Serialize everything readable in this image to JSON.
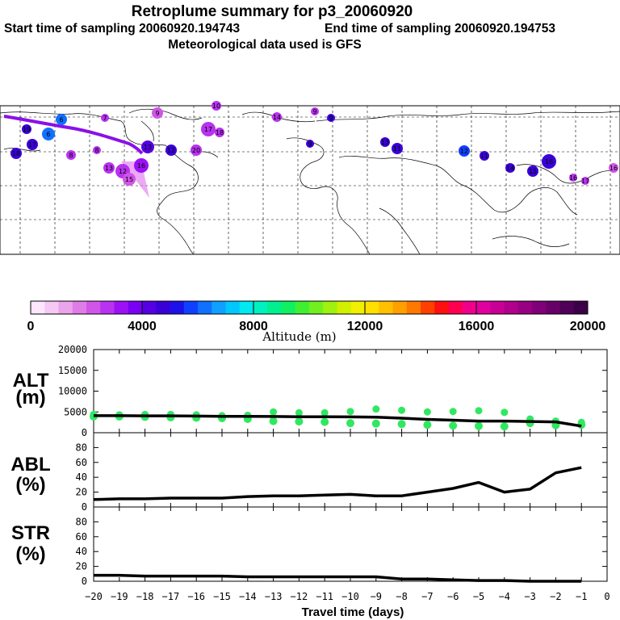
{
  "header": {
    "title": "Retroplume summary for p3_20060920",
    "start_label": "Start time of sampling 20060920.194743",
    "end_label": "End time of sampling 20060920.194753",
    "met_label": "Meteorological data used is GFS"
  },
  "colorbar": {
    "ticks": [
      "0",
      "4000",
      "8000",
      "12000",
      "16000",
      "20000"
    ],
    "label": "Altitude (m)",
    "stops": [
      "#ffe6ff",
      "#f5c8f5",
      "#eaa5ea",
      "#e07ce8",
      "#d155e8",
      "#b832f0",
      "#9c10f5",
      "#7a00f5",
      "#5500e0",
      "#3a00d8",
      "#1e10e8",
      "#1040ff",
      "#1070ff",
      "#10a0ff",
      "#00c8ff",
      "#00e8f0",
      "#00f0c0",
      "#00f090",
      "#10f060",
      "#40f030",
      "#70f020",
      "#a0f010",
      "#d0f000",
      "#f0f000",
      "#ffe000",
      "#ffc000",
      "#ffa000",
      "#ff7800",
      "#ff4000",
      "#ff1010",
      "#ff0050",
      "#f0008a",
      "#e000a0",
      "#c80096",
      "#b0008c",
      "#980082",
      "#800078",
      "#68006a",
      "#500058",
      "#3c0048"
    ]
  },
  "map_labels": [
    "6",
    "6",
    "19",
    "17",
    "18",
    "8",
    "7",
    "9",
    "8",
    "10",
    "17",
    "18",
    "14",
    "13",
    "12",
    "15",
    "16",
    "13",
    "9",
    "9",
    "9",
    "20",
    "12",
    "11",
    "13",
    "12",
    "11",
    "14",
    "15",
    "16",
    "16",
    "17",
    "16"
  ],
  "chart_data": [
    {
      "name": "ALT",
      "type": "line",
      "title": "ALT",
      "ylabel": "(m)",
      "x": [
        -20,
        -19,
        -18,
        -17,
        -16,
        -15,
        -14,
        -13,
        -12,
        -11,
        -10,
        -9,
        -8,
        -7,
        -6,
        -5,
        -4,
        -3,
        -2,
        -1
      ],
      "xlim": [
        -20,
        0
      ],
      "ylim": [
        0,
        20000
      ],
      "yticks": [
        0,
        5000,
        10000,
        15000,
        20000
      ],
      "series": [
        {
          "name": "mean altitude",
          "values": [
            4100,
            4100,
            4050,
            4050,
            4000,
            3950,
            3950,
            3900,
            3850,
            3850,
            3800,
            3750,
            3500,
            3200,
            3000,
            2800,
            2800,
            2700,
            2600,
            1600
          ]
        },
        {
          "name": "cluster upper",
          "values": [
            4400,
            4300,
            4400,
            4400,
            4300,
            4100,
            4200,
            5000,
            4800,
            4800,
            5100,
            5700,
            5400,
            5000,
            5100,
            5300,
            4900,
            3300,
            2800,
            2500
          ]
        },
        {
          "name": "cluster lower",
          "values": [
            3900,
            3900,
            3800,
            3700,
            3600,
            3500,
            3300,
            2800,
            2700,
            2600,
            2300,
            2200,
            2100,
            1900,
            1700,
            1600,
            1500,
            2300,
            1800,
            1900
          ]
        }
      ]
    },
    {
      "name": "ABL",
      "type": "line",
      "title": "ABL",
      "ylabel": "(%)",
      "x": [
        -20,
        -19,
        -18,
        -17,
        -16,
        -15,
        -14,
        -13,
        -12,
        -11,
        -10,
        -9,
        -8,
        -7,
        -6,
        -5,
        -4,
        -3,
        -2,
        -1
      ],
      "xlim": [
        -20,
        0
      ],
      "ylim": [
        0,
        100
      ],
      "yticks": [
        0,
        20,
        40,
        60,
        80
      ],
      "series": [
        {
          "name": "ABL fraction",
          "values": [
            10,
            11,
            11,
            12,
            12,
            12,
            14,
            15,
            15,
            16,
            17,
            15,
            15,
            20,
            25,
            33,
            20,
            24,
            46,
            53
          ]
        }
      ]
    },
    {
      "name": "STR",
      "type": "line",
      "title": "STR",
      "ylabel": "(%)",
      "x": [
        -20,
        -19,
        -18,
        -17,
        -16,
        -15,
        -14,
        -13,
        -12,
        -11,
        -10,
        -9,
        -8,
        -7,
        -6,
        -5,
        -4,
        -3,
        -2,
        -1
      ],
      "xlim": [
        -20,
        0
      ],
      "ylim": [
        0,
        100
      ],
      "yticks": [
        0,
        20,
        40,
        60,
        80
      ],
      "xlabel": "Travel time (days)",
      "xticklabels": [
        "−20",
        "−19",
        "−18",
        "−17",
        "−16",
        "−15",
        "−14",
        "−13",
        "−12",
        "−11",
        "−10",
        "−9",
        "−8",
        "−7",
        "−6",
        "−5",
        "−4",
        "−3",
        "−2",
        "−1",
        "0"
      ],
      "series": [
        {
          "name": "stratospheric fraction",
          "values": [
            8,
            8,
            7,
            7,
            7,
            7,
            6,
            6,
            6,
            6,
            6,
            6,
            3,
            3,
            2,
            1,
            1,
            0,
            0,
            0
          ]
        }
      ]
    }
  ]
}
